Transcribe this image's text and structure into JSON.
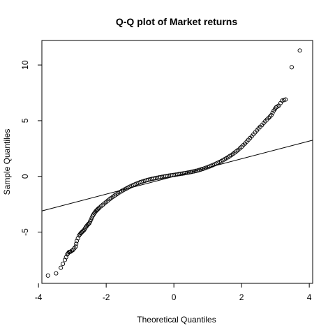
{
  "chart_data": {
    "type": "scatter",
    "title": "Q-Q plot of Market returns",
    "xlabel": "Theoretical Quantiles",
    "ylabel": "Sample Quantiles",
    "xlim": [
      -3.9,
      4.1
    ],
    "ylim": [
      -9.6,
      12.2
    ],
    "xticks": [
      -4,
      -2,
      0,
      2,
      4
    ],
    "yticks": [
      -5,
      0,
      5,
      10
    ],
    "grid": false,
    "legend": "none",
    "point_color": "#000000",
    "reference_line": {
      "x": [
        -3.9,
        4.1
      ],
      "y": [
        -3.1,
        3.25
      ]
    },
    "sample_points": [
      [
        -3.72,
        -8.9
      ],
      [
        -3.48,
        -8.7
      ],
      [
        -3.34,
        -8.2
      ],
      [
        -3.22,
        -7.5
      ],
      [
        -3.15,
        -7.0
      ],
      [
        -3.1,
        -6.8
      ],
      [
        -3.05,
        -6.75
      ],
      [
        -2.98,
        -6.6
      ],
      [
        -2.9,
        -6.3
      ],
      [
        -2.87,
        -5.8
      ],
      [
        -2.8,
        -5.3
      ],
      [
        -2.75,
        -5.1
      ],
      [
        -2.7,
        -4.95
      ],
      [
        -2.65,
        -4.8
      ],
      [
        -2.6,
        -4.55
      ],
      [
        -2.55,
        -4.35
      ],
      [
        -2.5,
        -4.2
      ],
      [
        -2.45,
        -3.9
      ],
      [
        -2.4,
        -3.55
      ],
      [
        -2.35,
        -3.3
      ],
      [
        -2.3,
        -3.1
      ],
      [
        -2.25,
        -2.95
      ],
      [
        -2.2,
        -2.8
      ],
      [
        -2.1,
        -2.55
      ],
      [
        -2.0,
        -2.3
      ],
      [
        -1.9,
        -2.05
      ],
      [
        -1.8,
        -1.82
      ],
      [
        -1.7,
        -1.62
      ],
      [
        -1.6,
        -1.42
      ],
      [
        -1.5,
        -1.24
      ],
      [
        -1.4,
        -1.08
      ],
      [
        -1.3,
        -0.92
      ],
      [
        -1.2,
        -0.78
      ],
      [
        -1.1,
        -0.65
      ],
      [
        -1.0,
        -0.53
      ],
      [
        -0.9,
        -0.43
      ],
      [
        -0.8,
        -0.34
      ],
      [
        -0.7,
        -0.26
      ],
      [
        -0.6,
        -0.19
      ],
      [
        -0.5,
        -0.13
      ],
      [
        -0.4,
        -0.07
      ],
      [
        -0.3,
        -0.01
      ],
      [
        -0.2,
        0.04
      ],
      [
        -0.1,
        0.09
      ],
      [
        0.0,
        0.13
      ],
      [
        0.1,
        0.18
      ],
      [
        0.2,
        0.23
      ],
      [
        0.3,
        0.28
      ],
      [
        0.4,
        0.33
      ],
      [
        0.5,
        0.39
      ],
      [
        0.6,
        0.46
      ],
      [
        0.7,
        0.53
      ],
      [
        0.8,
        0.62
      ],
      [
        0.9,
        0.72
      ],
      [
        1.0,
        0.83
      ],
      [
        1.1,
        0.95
      ],
      [
        1.2,
        1.08
      ],
      [
        1.3,
        1.22
      ],
      [
        1.4,
        1.37
      ],
      [
        1.5,
        1.54
      ],
      [
        1.6,
        1.72
      ],
      [
        1.7,
        1.92
      ],
      [
        1.8,
        2.14
      ],
      [
        1.9,
        2.38
      ],
      [
        2.0,
        2.65
      ],
      [
        2.1,
        2.95
      ],
      [
        2.2,
        3.28
      ],
      [
        2.3,
        3.6
      ],
      [
        2.4,
        3.95
      ],
      [
        2.5,
        4.3
      ],
      [
        2.6,
        4.6
      ],
      [
        2.7,
        4.95
      ],
      [
        2.8,
        5.25
      ],
      [
        2.88,
        5.5
      ],
      [
        2.95,
        5.9
      ],
      [
        3.02,
        6.2
      ],
      [
        3.1,
        6.35
      ],
      [
        3.2,
        6.8
      ],
      [
        3.3,
        6.9
      ],
      [
        3.48,
        9.8
      ],
      [
        3.72,
        11.3
      ]
    ]
  }
}
